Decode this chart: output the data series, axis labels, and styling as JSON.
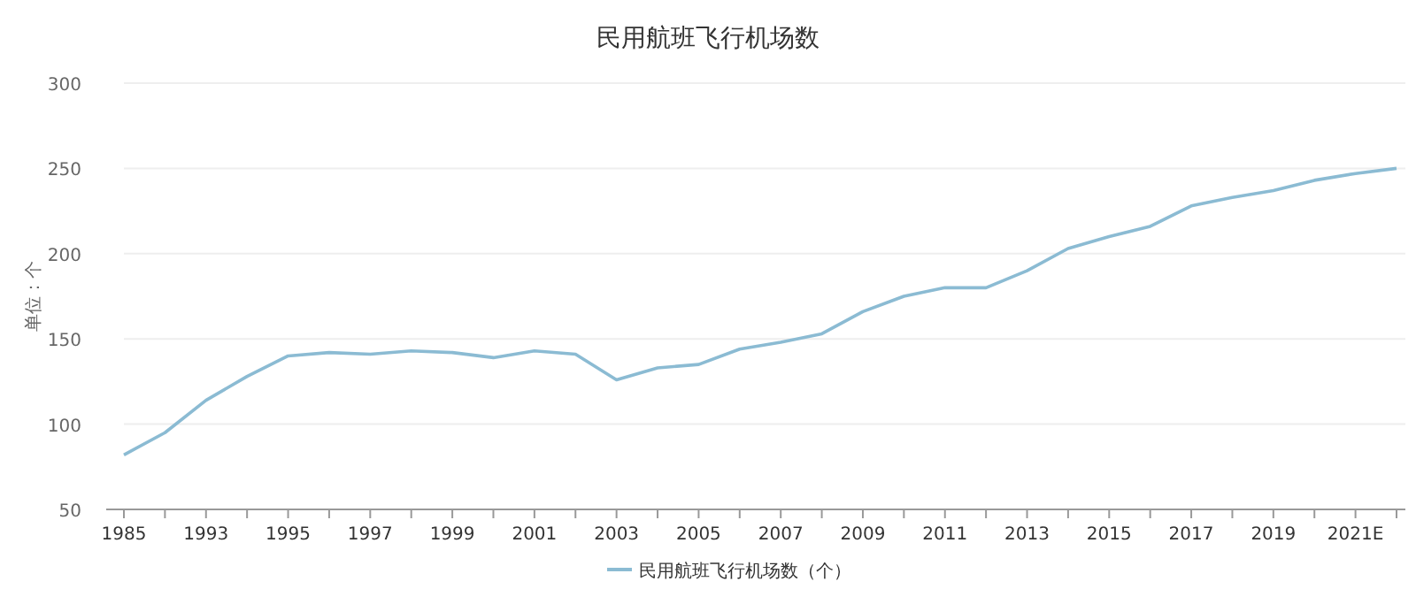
{
  "chart_data": {
    "type": "line",
    "title": "民用航班飞行机场数",
    "ylabel": "单位：个",
    "categories": [
      "1985",
      null,
      "1993",
      null,
      "1995",
      null,
      "1997",
      null,
      "1999",
      null,
      "2001",
      null,
      "2003",
      null,
      "2005",
      null,
      "2007",
      null,
      "2009",
      null,
      "2011",
      null,
      "2013",
      null,
      "2015",
      null,
      "2017",
      null,
      "2019",
      null,
      "2021E",
      null
    ],
    "series": [
      {
        "name": "民用航班飞行机场数（个）",
        "color": "#8bbbd3",
        "values": [
          82,
          95,
          114,
          128,
          140,
          142,
          141,
          143,
          142,
          139,
          143,
          141,
          126,
          133,
          135,
          144,
          148,
          153,
          166,
          175,
          180,
          180,
          190,
          203,
          210,
          216,
          228,
          233,
          237,
          243,
          247,
          250
        ]
      }
    ],
    "ylim": [
      50,
      300
    ],
    "yticks": [
      50,
      100,
      150,
      200,
      250,
      300
    ],
    "grid": "y",
    "legend": "bottom",
    "marker": "none",
    "line_style": "solid"
  }
}
